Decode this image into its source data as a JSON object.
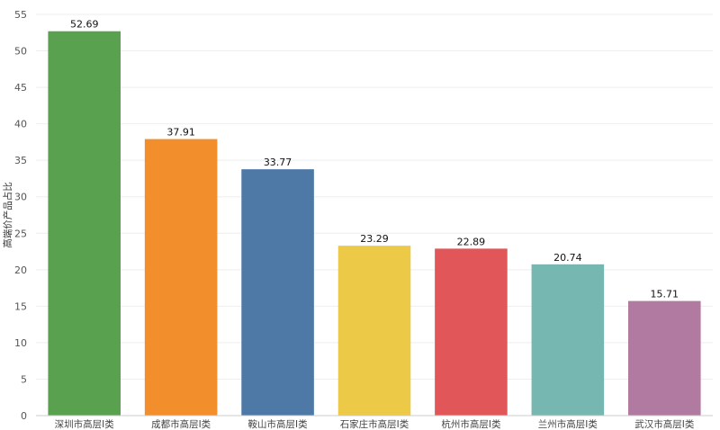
{
  "chart_data": {
    "type": "bar",
    "title": "",
    "xlabel": "",
    "ylabel": "高端价产品占比",
    "ylim": [
      0,
      55
    ],
    "yticks": [
      0,
      5,
      10,
      15,
      20,
      25,
      30,
      35,
      40,
      45,
      50,
      55
    ],
    "grid": true,
    "categories": [
      "深圳市高层Ⅰ类",
      "成都市高层Ⅰ类",
      "鞍山市高层Ⅰ类",
      "石家庄市高层Ⅰ类",
      "杭州市高层Ⅰ类",
      "兰州市高层Ⅰ类",
      "武汉市高层Ⅰ类"
    ],
    "values": [
      52.69,
      37.91,
      33.77,
      23.29,
      22.89,
      20.74,
      15.71
    ],
    "value_labels": [
      "52.69",
      "37.91",
      "33.77",
      "23.29",
      "22.89",
      "20.74",
      "15.71"
    ],
    "colors": [
      "#59a14f",
      "#f28e2b",
      "#4e79a7",
      "#edc948",
      "#e15759",
      "#76b7b2",
      "#b07aa1"
    ]
  }
}
